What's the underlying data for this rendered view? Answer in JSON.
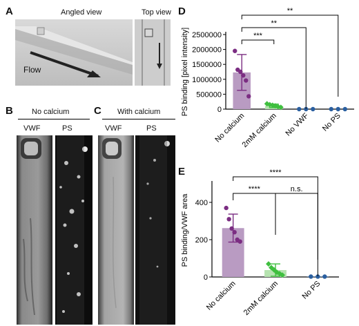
{
  "panels": {
    "a": {
      "letter": "A",
      "angled_label": "Angled view",
      "top_label": "Top view",
      "flow_label": "Flow"
    },
    "b": {
      "letter": "B",
      "title": "No calcium",
      "col1": "VWF",
      "col2": "PS"
    },
    "c": {
      "letter": "C",
      "title": "With calcium",
      "col1": "VWF",
      "col2": "PS"
    },
    "d": {
      "letter": "D"
    },
    "e": {
      "letter": "E"
    }
  },
  "colors": {
    "purple": "#7b2d82",
    "purple_bar": "#b99bc2",
    "green": "#3fbf3f",
    "green_bar": "#b6e3b0",
    "blue": "#2a5fa0"
  },
  "chart_data": [
    {
      "id": "D",
      "type": "bar",
      "ylabel": "PS binding [pixel intensity]",
      "ylim": [
        0,
        2500000
      ],
      "yticks": [
        "0",
        "500000",
        "1000000",
        "1500000",
        "2000000",
        "2500000"
      ],
      "categories": [
        "No calcium",
        "2mM calcium",
        "No VWF",
        "No PS"
      ],
      "means": [
        1230000,
        110000,
        0,
        0
      ],
      "errors": [
        600000,
        60000,
        0,
        0
      ],
      "points": [
        [
          1950000,
          1320000,
          1250000,
          1130000,
          960000,
          430000
        ],
        [
          180000,
          150000,
          130000,
          110000,
          80000,
          60000
        ],
        [
          0,
          0,
          0
        ],
        [
          0,
          0,
          0
        ]
      ],
      "significance": [
        {
          "from": 0,
          "to": 1,
          "label": "***"
        },
        {
          "from": 0,
          "to": 2,
          "label": "**"
        },
        {
          "from": 0,
          "to": 3,
          "label": "**"
        }
      ]
    },
    {
      "id": "E",
      "type": "bar",
      "ylabel": "PS binding/VWF area",
      "ylim": [
        0,
        500
      ],
      "yticks": [
        "0",
        "200",
        "400"
      ],
      "categories": [
        "No calcium",
        "2mM calcium",
        "No PS"
      ],
      "means": [
        262,
        37,
        2
      ],
      "errors": [
        75,
        33,
        0
      ],
      "points": [
        [
          370,
          310,
          260,
          240,
          200,
          190
        ],
        [
          70,
          50,
          38,
          25,
          18,
          10
        ],
        [
          2,
          2,
          2
        ]
      ],
      "significance": [
        {
          "from": 0,
          "to": 1,
          "label": "****"
        },
        {
          "from": 1,
          "to": 2,
          "label": "n.s."
        },
        {
          "from": 0,
          "to": 2,
          "label": "****"
        }
      ]
    }
  ]
}
